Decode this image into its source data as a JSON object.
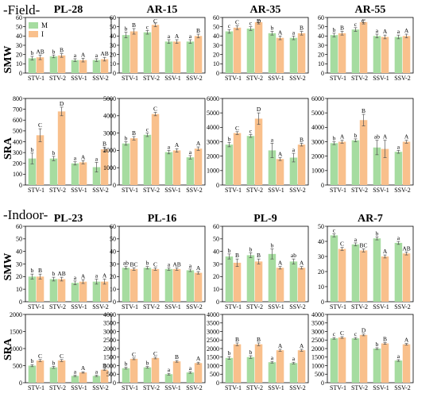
{
  "sections": [
    {
      "label": "-Field-"
    },
    {
      "label": "-Indoor-"
    }
  ],
  "row_labels": {
    "smw": "SMW",
    "sra": "SRA"
  },
  "legend": [
    {
      "name": "M",
      "color": "#a6dca0"
    },
    {
      "name": "I",
      "color": "#f9c08c"
    }
  ],
  "categories": [
    "STV-1",
    "STV-2",
    "SSV-1",
    "SSV-2"
  ],
  "colors": {
    "M": "#a6dca0",
    "I": "#f9c08c",
    "error_bar": "#555555"
  },
  "chart_data": [
    {
      "type": "bar",
      "section": "Field",
      "row": "SMW",
      "title": "PL-28",
      "ylim": [
        0,
        60
      ],
      "ticks": [
        0,
        10,
        20,
        30,
        40,
        50,
        60
      ],
      "categories": [
        "STV-1",
        "STV-2",
        "SSV-1",
        "SSV-2"
      ],
      "series": [
        {
          "name": "M",
          "values": [
            16,
            18,
            14,
            14
          ],
          "errors": [
            2,
            1.5,
            1.5,
            1.5
          ],
          "labels": [
            "b",
            "b",
            "a",
            "a"
          ]
        },
        {
          "name": "I",
          "values": [
            17,
            19,
            14,
            15
          ],
          "errors": [
            2.5,
            2,
            2,
            2
          ],
          "labels": [
            "AB",
            "B",
            "A",
            "AB"
          ]
        }
      ]
    },
    {
      "type": "bar",
      "section": "Field",
      "row": "SMW",
      "title": "AR-15",
      "ylim": [
        0,
        60
      ],
      "ticks": [
        0,
        10,
        20,
        30,
        40,
        50,
        60
      ],
      "categories": [
        "STV-1",
        "STV-2",
        "SSV-1",
        "SSV-2"
      ],
      "series": [
        {
          "name": "M",
          "values": [
            41,
            44,
            34,
            34
          ],
          "errors": [
            3,
            2,
            2,
            2
          ],
          "labels": [
            "b",
            "c",
            "a",
            "a"
          ]
        },
        {
          "name": "I",
          "values": [
            45,
            52,
            34,
            40
          ],
          "errors": [
            3,
            2,
            2,
            2
          ],
          "labels": [
            "B",
            "C",
            "A",
            "B"
          ]
        }
      ]
    },
    {
      "type": "bar",
      "section": "Field",
      "row": "SMW",
      "title": "AR-35",
      "ylim": [
        0,
        60
      ],
      "ticks": [
        0,
        10,
        20,
        30,
        40,
        50,
        60
      ],
      "categories": [
        "STV-1",
        "STV-2",
        "SSV-1",
        "SSV-2"
      ],
      "series": [
        {
          "name": "M",
          "values": [
            45,
            48,
            43,
            38
          ],
          "errors": [
            2,
            2,
            2,
            2
          ],
          "labels": [
            "c",
            "c",
            "b",
            "a"
          ]
        },
        {
          "name": "I",
          "values": [
            49,
            55,
            38,
            43
          ],
          "errors": [
            2,
            2,
            2,
            2
          ],
          "labels": [
            "C",
            "D",
            "A",
            "B"
          ]
        }
      ]
    },
    {
      "type": "bar",
      "section": "Field",
      "row": "SMW",
      "title": "AR-55",
      "ylim": [
        0,
        60
      ],
      "ticks": [
        0,
        10,
        20,
        30,
        40,
        50,
        60
      ],
      "categories": [
        "STV-1",
        "STV-2",
        "SSV-1",
        "SSV-2"
      ],
      "series": [
        {
          "name": "M",
          "values": [
            41,
            47,
            40,
            39
          ],
          "errors": [
            2,
            2,
            2,
            2
          ],
          "labels": [
            "b",
            "c",
            "a",
            "a"
          ]
        },
        {
          "name": "I",
          "values": [
            43,
            55,
            39,
            40
          ],
          "errors": [
            2,
            2,
            2,
            2
          ],
          "labels": [
            "B",
            "C",
            "A",
            "A"
          ]
        }
      ]
    },
    {
      "type": "bar",
      "section": "Field",
      "row": "SRA",
      "title": "",
      "ylim": [
        0,
        800
      ],
      "ticks": [
        0,
        100,
        200,
        300,
        400,
        500,
        600,
        700,
        800
      ],
      "categories": [
        "STV-1",
        "STV-2",
        "SSV-1",
        "SSV-2"
      ],
      "series": [
        {
          "name": "M",
          "values": [
            245,
            245,
            200,
            165
          ],
          "errors": [
            50,
            20,
            15,
            45
          ],
          "labels": [
            "b",
            "b",
            "a",
            "a"
          ]
        },
        {
          "name": "I",
          "values": [
            460,
            680,
            210,
            330
          ],
          "errors": [
            60,
            40,
            15,
            20
          ],
          "labels": [
            "C",
            "D",
            "A",
            "B"
          ]
        }
      ]
    },
    {
      "type": "bar",
      "section": "Field",
      "row": "SRA",
      "title": "",
      "ylim": [
        0,
        5000
      ],
      "ticks": [
        0,
        1000,
        2000,
        3000,
        4000,
        5000
      ],
      "categories": [
        "STV-1",
        "STV-2",
        "SSV-1",
        "SSV-2"
      ],
      "series": [
        {
          "name": "M",
          "values": [
            2400,
            2900,
            1900,
            1600
          ],
          "errors": [
            100,
            100,
            100,
            100
          ],
          "labels": [
            "b",
            "c",
            "a",
            "a"
          ]
        },
        {
          "name": "I",
          "values": [
            2700,
            4100,
            2000,
            2100
          ],
          "errors": [
            100,
            100,
            100,
            100
          ],
          "labels": [
            "B",
            "C",
            "A",
            "A"
          ]
        }
      ]
    },
    {
      "type": "bar",
      "section": "Field",
      "row": "SRA",
      "title": "",
      "ylim": [
        0,
        6000
      ],
      "ticks": [
        0,
        1000,
        2000,
        3000,
        4000,
        5000,
        6000
      ],
      "categories": [
        "STV-1",
        "STV-2",
        "SSV-1",
        "SSV-2"
      ],
      "series": [
        {
          "name": "M",
          "values": [
            2800,
            3400,
            2400,
            1900
          ],
          "errors": [
            150,
            100,
            500,
            300
          ],
          "labels": [
            "b",
            "c",
            "a",
            "a"
          ]
        },
        {
          "name": "I",
          "values": [
            3600,
            4600,
            1800,
            2800
          ],
          "errors": [
            100,
            400,
            100,
            100
          ],
          "labels": [
            "C",
            "D",
            "A",
            "B"
          ]
        }
      ]
    },
    {
      "type": "bar",
      "section": "Field",
      "row": "SRA",
      "title": "",
      "ylim": [
        0,
        6000
      ],
      "ticks": [
        0,
        1000,
        2000,
        3000,
        4000,
        5000,
        6000
      ],
      "categories": [
        "STV-1",
        "STV-2",
        "SSV-1",
        "SSV-2"
      ],
      "series": [
        {
          "name": "M",
          "values": [
            2900,
            3100,
            2600,
            2300
          ],
          "errors": [
            100,
            100,
            500,
            100
          ],
          "labels": [
            "b",
            "b",
            "ab",
            "a"
          ]
        },
        {
          "name": "I",
          "values": [
            3000,
            4500,
            2500,
            3000
          ],
          "errors": [
            100,
            400,
            600,
            100
          ],
          "labels": [
            "A",
            "B",
            "A",
            "A"
          ]
        }
      ]
    },
    {
      "type": "bar",
      "section": "Indoor",
      "row": "SMW",
      "title": "PL-23",
      "ylim": [
        0,
        60
      ],
      "ticks": [
        0,
        10,
        20,
        30,
        40,
        50,
        60
      ],
      "categories": [
        "STV-1",
        "STV-2",
        "SSV-1",
        "SSV-2"
      ],
      "series": [
        {
          "name": "M",
          "values": [
            20,
            18,
            15,
            16
          ],
          "errors": [
            2,
            1.5,
            1.5,
            2
          ],
          "labels": [
            "b",
            "b",
            "a",
            "a"
          ]
        },
        {
          "name": "I",
          "values": [
            20,
            18,
            16,
            16
          ],
          "errors": [
            2,
            1.5,
            1.5,
            2
          ],
          "labels": [
            "B",
            "AB",
            "A",
            "A"
          ]
        }
      ]
    },
    {
      "type": "bar",
      "section": "Indoor",
      "row": "SMW",
      "title": "PL-16",
      "ylim": [
        0,
        60
      ],
      "ticks": [
        0,
        10,
        20,
        30,
        40,
        50,
        60
      ],
      "categories": [
        "STV-1",
        "STV-2",
        "SSV-1",
        "SSV-2"
      ],
      "series": [
        {
          "name": "M",
          "values": [
            27,
            27,
            26,
            25
          ],
          "errors": [
            1,
            1,
            1,
            1
          ],
          "labels": [
            "ab",
            "b",
            "a",
            "a"
          ]
        },
        {
          "name": "I",
          "values": [
            26,
            26,
            26,
            23
          ],
          "errors": [
            1,
            1,
            1,
            1
          ],
          "labels": [
            "BC",
            "C",
            "AB",
            "A"
          ]
        }
      ]
    },
    {
      "type": "bar",
      "section": "Indoor",
      "row": "SMW",
      "title": "PL-9",
      "ylim": [
        0,
        60
      ],
      "ticks": [
        0,
        10,
        20,
        30,
        40,
        50,
        60
      ],
      "categories": [
        "STV-1",
        "STV-2",
        "SSV-1",
        "SSV-2"
      ],
      "series": [
        {
          "name": "M",
          "values": [
            36,
            37,
            38,
            32
          ],
          "errors": [
            2,
            2,
            4,
            2
          ],
          "labels": [
            "b",
            "b",
            "b",
            "ab"
          ]
        },
        {
          "name": "I",
          "values": [
            31,
            32,
            27,
            27
          ],
          "errors": [
            3,
            2,
            1,
            1
          ],
          "labels": [
            "B",
            "B",
            "A",
            "A"
          ]
        }
      ]
    },
    {
      "type": "bar",
      "section": "Indoor",
      "row": "SMW",
      "title": "AR-7",
      "ylim": [
        0,
        50
      ],
      "ticks": [
        0,
        10,
        20,
        30,
        40,
        50
      ],
      "categories": [
        "STV-1",
        "STV-2",
        "SSV-1",
        "SSV-2"
      ],
      "series": [
        {
          "name": "M",
          "values": [
            44,
            38,
            42,
            39
          ],
          "errors": [
            1,
            1,
            1,
            1
          ],
          "labels": [
            "c",
            "a",
            "b",
            "a"
          ]
        },
        {
          "name": "I",
          "values": [
            35,
            34,
            30,
            32
          ],
          "errors": [
            1,
            1,
            1,
            1
          ],
          "labels": [
            "C",
            "BC",
            "A",
            "AB"
          ]
        }
      ]
    },
    {
      "type": "bar",
      "section": "Indoor",
      "row": "SRA",
      "title": "",
      "ylim": [
        0,
        2000
      ],
      "ticks": [
        0,
        500,
        1000,
        1500,
        2000
      ],
      "categories": [
        "STV-1",
        "STV-2",
        "SSV-1",
        "SSV-2"
      ],
      "series": [
        {
          "name": "M",
          "values": [
            500,
            450,
            200,
            200
          ],
          "errors": [
            30,
            30,
            20,
            20
          ],
          "labels": [
            "b",
            "b",
            "a",
            "a"
          ]
        },
        {
          "name": "I",
          "values": [
            650,
            650,
            300,
            380
          ],
          "errors": [
            30,
            30,
            20,
            20
          ],
          "labels": [
            "C",
            "C",
            "A",
            "B"
          ]
        }
      ]
    },
    {
      "type": "bar",
      "section": "Indoor",
      "row": "SRA",
      "title": "",
      "ylim": [
        0,
        4000
      ],
      "ticks": [
        0,
        500,
        1000,
        1500,
        2000,
        2500,
        3000,
        3500,
        4000
      ],
      "categories": [
        "STV-1",
        "STV-2",
        "SSV-1",
        "SSV-2"
      ],
      "series": [
        {
          "name": "M",
          "values": [
            850,
            900,
            500,
            600
          ],
          "errors": [
            50,
            50,
            50,
            50
          ],
          "labels": [
            "b",
            "b",
            "a",
            "a"
          ]
        },
        {
          "name": "I",
          "values": [
            1400,
            1450,
            1250,
            1150
          ],
          "errors": [
            50,
            50,
            50,
            50
          ],
          "labels": [
            "C",
            "C",
            "B",
            "A"
          ]
        }
      ]
    },
    {
      "type": "bar",
      "section": "Indoor",
      "row": "SRA",
      "title": "",
      "ylim": [
        0,
        4000
      ],
      "ticks": [
        0,
        500,
        1000,
        1500,
        2000,
        2500,
        3000,
        3500,
        4000
      ],
      "categories": [
        "STV-1",
        "STV-2",
        "SSV-1",
        "SSV-2"
      ],
      "series": [
        {
          "name": "M",
          "values": [
            1450,
            1500,
            1200,
            1150
          ],
          "errors": [
            80,
            80,
            50,
            50
          ],
          "labels": [
            "b",
            "b",
            "a",
            "a"
          ]
        },
        {
          "name": "I",
          "values": [
            2250,
            2250,
            1900,
            1900
          ],
          "errors": [
            80,
            80,
            60,
            60
          ],
          "labels": [
            "B",
            "B",
            "A",
            "A"
          ]
        }
      ]
    },
    {
      "type": "bar",
      "section": "Indoor",
      "row": "SRA",
      "title": "",
      "ylim": [
        0,
        4000
      ],
      "ticks": [
        0,
        500,
        1000,
        1500,
        2000,
        2500,
        3000,
        3500,
        4000
      ],
      "categories": [
        "STV-1",
        "STV-2",
        "SSV-1",
        "SSV-2"
      ],
      "series": [
        {
          "name": "M",
          "values": [
            2600,
            2600,
            2000,
            1300
          ],
          "errors": [
            50,
            50,
            50,
            50
          ],
          "labels": [
            "c",
            "c",
            "b",
            "a"
          ]
        },
        {
          "name": "I",
          "values": [
            2650,
            2800,
            2300,
            2250
          ],
          "errors": [
            50,
            50,
            50,
            50
          ],
          "labels": [
            "C",
            "D",
            "B",
            "A"
          ]
        }
      ]
    }
  ]
}
